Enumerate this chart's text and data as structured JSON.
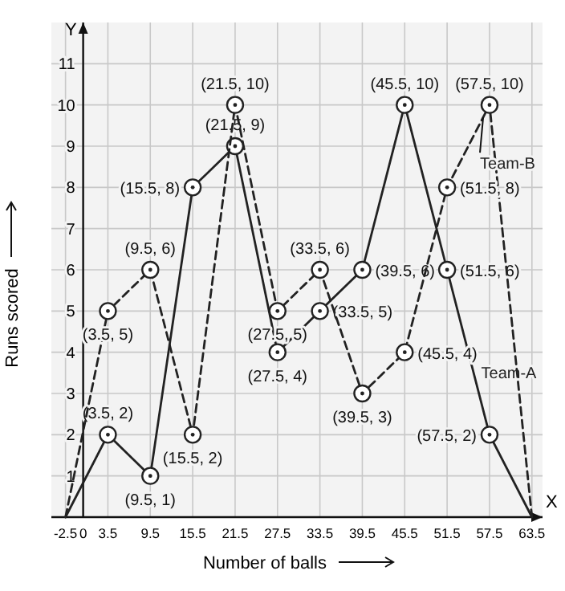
{
  "chart_data": {
    "type": "line",
    "xlabel": "Number of balls",
    "ylabel": "Runs scored",
    "x": [
      -2.5,
      3.5,
      9.5,
      15.5,
      21.5,
      27.5,
      33.5,
      39.5,
      45.5,
      51.5,
      57.5,
      63.5
    ],
    "xlim": [
      -4.5,
      65
    ],
    "xticks": [
      -2.5,
      0,
      3.5,
      9.5,
      15.5,
      21.5,
      27.5,
      33.5,
      39.5,
      45.5,
      51.5,
      57.5,
      63.5
    ],
    "ylim": [
      0,
      12
    ],
    "yticks": [
      1,
      2,
      3,
      4,
      5,
      6,
      7,
      8,
      9,
      10,
      11
    ],
    "grid": true,
    "marker": "circle",
    "annotations": [
      "X",
      "Y"
    ],
    "series": [
      {
        "name": "Team-A",
        "color": "#222222",
        "line_style": "solid",
        "values": [
          0,
          2,
          1,
          8,
          9,
          4,
          5,
          6,
          10,
          6,
          2,
          0
        ],
        "value_labels": [
          null,
          "(3.5, 2)",
          "(9.5, 1)",
          "(15.5, 8)",
          "(21.5, 9)",
          "(27.5, 4)",
          "(33.5, 5)",
          "(39.5, 6)",
          "(45.5, 10)",
          "(51.5, 6)",
          "(57.5, 2)",
          null
        ]
      },
      {
        "name": "Team-B",
        "color": "#222222",
        "line_style": "dashed",
        "values": [
          0,
          5,
          6,
          2,
          10,
          5,
          6,
          3,
          4,
          8,
          10,
          0
        ],
        "value_labels": [
          null,
          "(3.5, 5)",
          "(9.5, 6)",
          "(15.5, 2)",
          "(21.5, 10)",
          "(27.5, 5)",
          "(33.5, 6)",
          "(39.5, 3)",
          "(45.5, 4)",
          "(51.5, 8)",
          "(57.5, 10)",
          null
        ]
      }
    ]
  }
}
